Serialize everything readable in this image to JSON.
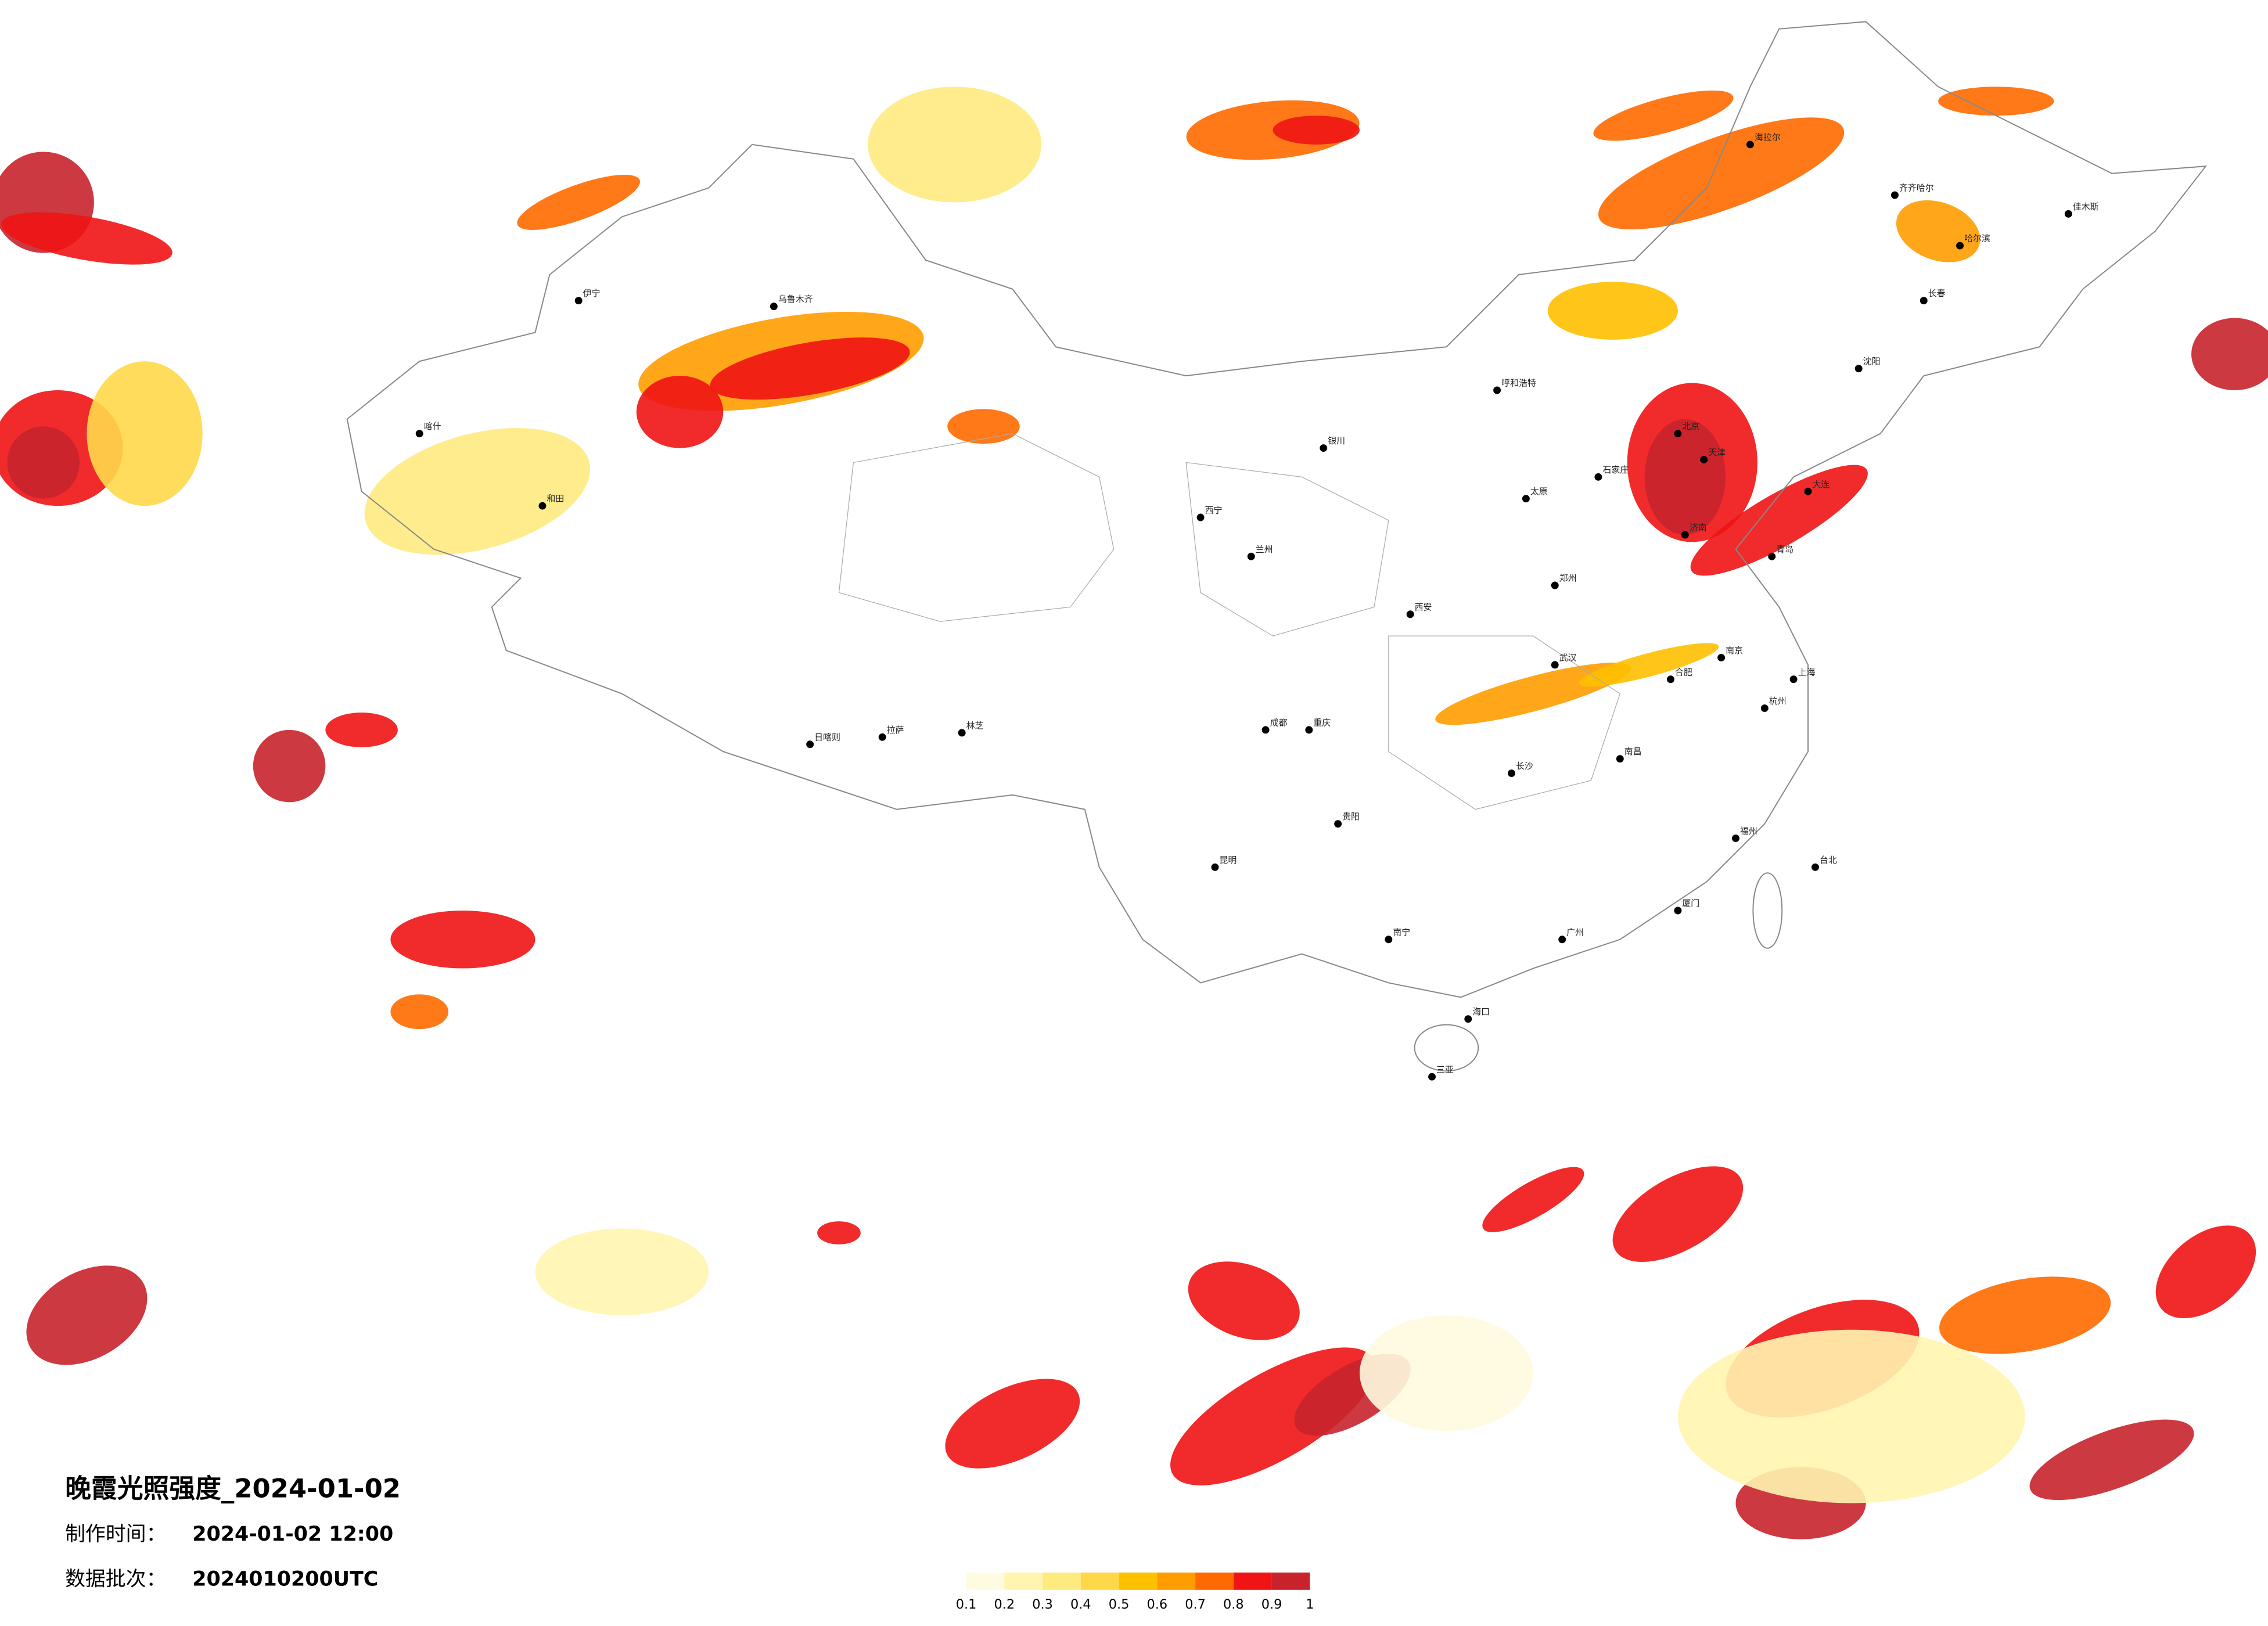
{
  "title": "晚霞光照强度_2024-01-02",
  "info": [
    {
      "label": "制作时间：",
      "value": "2024-01-02 12:00"
    },
    {
      "label": "数据批次：",
      "value": "2024010200UTC"
    }
  ],
  "legend": {
    "ticks": [
      0.1,
      0.2,
      0.3,
      0.4,
      0.5,
      0.6,
      0.7,
      0.8,
      0.9,
      1
    ],
    "colors": [
      "#fffbe0",
      "#fff5b0",
      "#ffea80",
      "#ffd84a",
      "#ffc000",
      "#ff9c00",
      "#ff6a00",
      "#f01414",
      "#c8232c"
    ]
  },
  "cities": [
    {
      "name": "北京"
    },
    {
      "name": "天津"
    },
    {
      "name": "上海"
    },
    {
      "name": "广州"
    },
    {
      "name": "乌鲁木齐"
    },
    {
      "name": "拉萨"
    },
    {
      "name": "哈尔滨"
    },
    {
      "name": "长春"
    },
    {
      "name": "沈阳"
    },
    {
      "name": "呼和浩特"
    },
    {
      "name": "西宁"
    },
    {
      "name": "兰州"
    },
    {
      "name": "成都"
    },
    {
      "name": "重庆"
    },
    {
      "name": "昆明"
    },
    {
      "name": "南宁"
    },
    {
      "name": "海口"
    },
    {
      "name": "台北"
    },
    {
      "name": "武汉"
    },
    {
      "name": "长沙"
    },
    {
      "name": "南昌"
    },
    {
      "name": "福州"
    },
    {
      "name": "杭州"
    },
    {
      "name": "南京"
    },
    {
      "name": "合肥"
    },
    {
      "name": "郑州"
    },
    {
      "name": "西安"
    },
    {
      "name": "太原"
    },
    {
      "name": "石家庄"
    },
    {
      "name": "济南"
    },
    {
      "name": "银川"
    },
    {
      "name": "贵阳"
    },
    {
      "name": "喀什"
    },
    {
      "name": "伊宁"
    },
    {
      "name": "和田"
    },
    {
      "name": "日喀则"
    },
    {
      "name": "林芝"
    },
    {
      "name": "三亚"
    },
    {
      "name": "大连"
    },
    {
      "name": "青岛"
    },
    {
      "name": "厦门"
    },
    {
      "name": "海拉尔"
    },
    {
      "name": "齐齐哈尔"
    },
    {
      "name": "佳木斯"
    }
  ]
}
